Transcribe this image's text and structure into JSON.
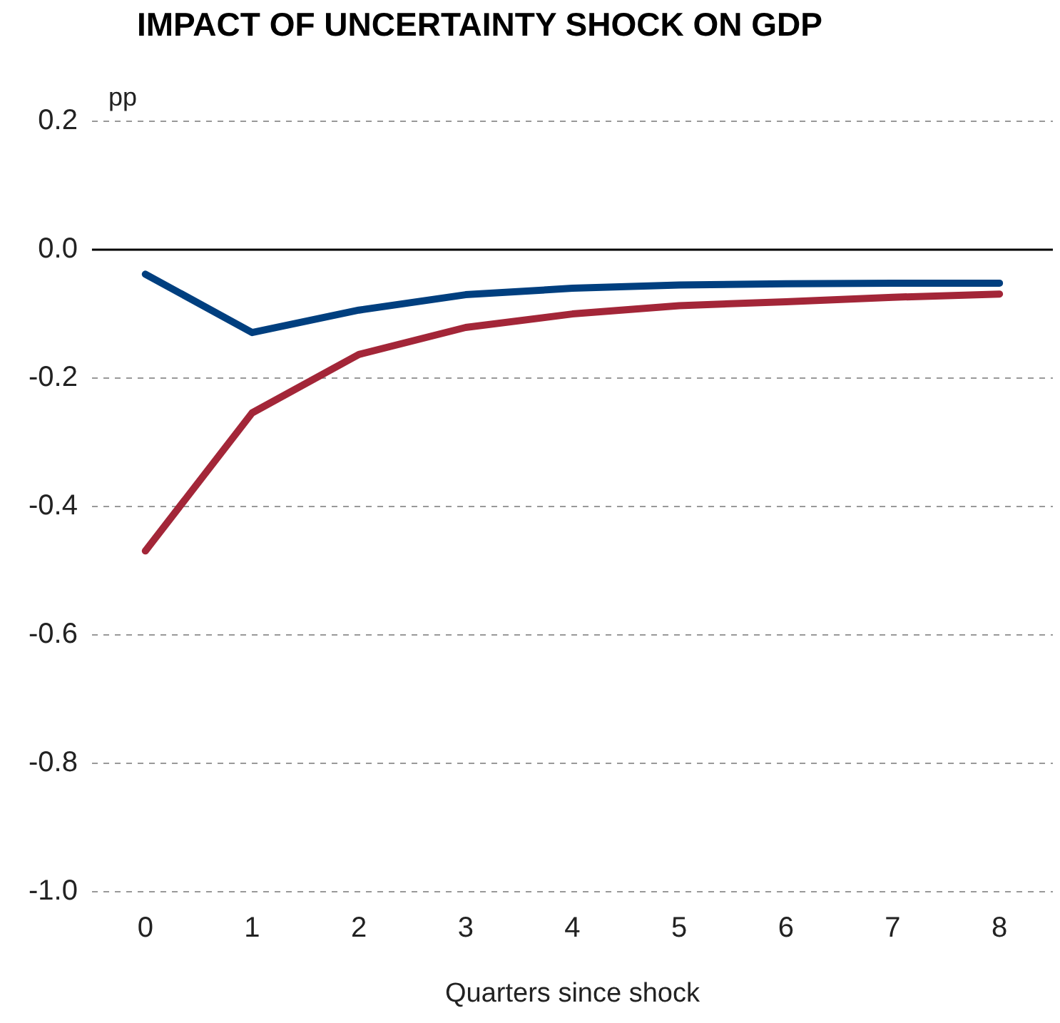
{
  "chart_data": {
    "type": "line",
    "title": "IMPACT OF UNCERTAINTY SHOCK ON GDP",
    "ylabel": "pp",
    "xlabel": "Quarters since shock",
    "categories": [
      "0",
      "1",
      "2",
      "3",
      "4",
      "5",
      "6",
      "7",
      "8"
    ],
    "series": [
      {
        "color": "#003f7f",
        "values": [
          -0.038,
          -0.129,
          -0.094,
          -0.07,
          -0.06,
          -0.055,
          -0.053,
          -0.052,
          -0.052
        ]
      },
      {
        "color": "#a32638",
        "values": [
          -0.469,
          -0.254,
          -0.163,
          -0.121,
          -0.1,
          -0.087,
          -0.081,
          -0.074,
          -0.069
        ]
      }
    ],
    "ylim": [
      -1,
      0.2
    ],
    "yticks": [
      {
        "value": -1,
        "label": "-1.0"
      },
      {
        "value": -0.8,
        "label": "-0.8"
      },
      {
        "value": -0.6,
        "label": "-0.6"
      },
      {
        "value": -0.4,
        "label": "-0.4"
      },
      {
        "value": -0.2,
        "label": "-0.2"
      },
      {
        "value": 0,
        "label": "0.0"
      },
      {
        "value": 0.2,
        "label": "0.2"
      }
    ],
    "ref_lines": [
      {
        "axis": "y",
        "value": 0,
        "color": "#000000",
        "line_style": "solid"
      }
    ],
    "grid": "y",
    "legend": false,
    "marker": "none",
    "line_style": "solid"
  }
}
